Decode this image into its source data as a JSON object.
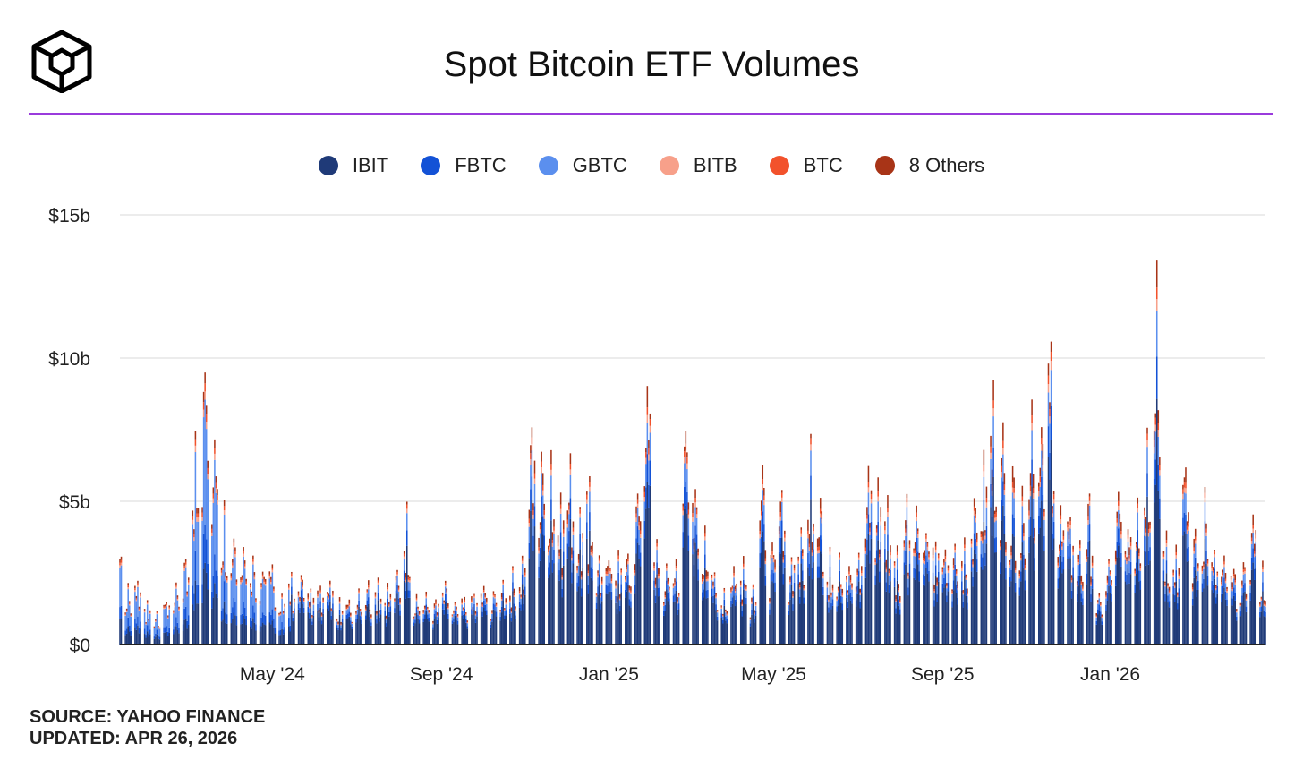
{
  "header": {
    "title": "Spot Bitcoin ETF Volumes",
    "logo_icon": "cube-logo-icon"
  },
  "footer": {
    "source": "SOURCE: YAHOO FINANCE",
    "updated": "UPDATED: APR 26, 2026"
  },
  "colors": {
    "IBIT": "#1f3a78",
    "FBTC": "#1352d6",
    "GBTC": "#5b8fee",
    "BITB": "#f7a08a",
    "BTC": "#f2522c",
    "Others": "#a83417",
    "accent_rule": "#9a3bdc",
    "gridline": "#e6e6e6"
  },
  "chart_data": {
    "type": "bar",
    "stacked": true,
    "title": "Spot Bitcoin ETF Volumes",
    "xlabel": "",
    "ylabel": "",
    "ylim": [
      0,
      15
    ],
    "y_unit": "$ billions",
    "y_ticks": [
      {
        "value": 0,
        "label": "$0"
      },
      {
        "value": 5,
        "label": "$5b"
      },
      {
        "value": 10,
        "label": "$10b"
      },
      {
        "value": 15,
        "label": "$15b"
      }
    ],
    "x_range": [
      "2024-01-11",
      "2026-04-24"
    ],
    "x_ticks": [
      {
        "date": "2024-05-01",
        "label": "May '24"
      },
      {
        "date": "2024-09-01",
        "label": "Sep '24"
      },
      {
        "date": "2025-01-01",
        "label": "Jan '25"
      },
      {
        "date": "2025-05-01",
        "label": "May '25"
      },
      {
        "date": "2025-09-01",
        "label": "Sep '25"
      },
      {
        "date": "2026-01-01",
        "label": "Jan '26"
      }
    ],
    "grid": true,
    "legend_position": "top-center",
    "series_names": [
      "IBIT",
      "FBTC",
      "GBTC",
      "BITB",
      "BTC",
      "8 Others"
    ],
    "weekly_total_volume": {
      "note_units": "$ billions, approximate daily total per week",
      "weeks": [
        {
          "w": "2024-01-12",
          "t": 4.5
        },
        {
          "w": "2024-01-19",
          "t": 2.2
        },
        {
          "w": "2024-01-26",
          "t": 2.3
        },
        {
          "w": "2024-02-02",
          "t": 1.6
        },
        {
          "w": "2024-02-09",
          "t": 1.2
        },
        {
          "w": "2024-02-16",
          "t": 1.5
        },
        {
          "w": "2024-02-23",
          "t": 2.2
        },
        {
          "w": "2024-03-01",
          "t": 3.0
        },
        {
          "w": "2024-03-08",
          "t": 7.6
        },
        {
          "w": "2024-03-15",
          "t": 9.8
        },
        {
          "w": "2024-03-22",
          "t": 7.4
        },
        {
          "w": "2024-03-29",
          "t": 5.2
        },
        {
          "w": "2024-04-05",
          "t": 3.8
        },
        {
          "w": "2024-04-12",
          "t": 3.5
        },
        {
          "w": "2024-04-19",
          "t": 3.2
        },
        {
          "w": "2024-04-26",
          "t": 2.6
        },
        {
          "w": "2024-05-03",
          "t": 2.9
        },
        {
          "w": "2024-05-10",
          "t": 1.8
        },
        {
          "w": "2024-05-17",
          "t": 2.6
        },
        {
          "w": "2024-05-24",
          "t": 2.5
        },
        {
          "w": "2024-05-31",
          "t": 2.0
        },
        {
          "w": "2024-06-07",
          "t": 2.1
        },
        {
          "w": "2024-06-14",
          "t": 2.3
        },
        {
          "w": "2024-06-21",
          "t": 1.7
        },
        {
          "w": "2024-06-28",
          "t": 1.6
        },
        {
          "w": "2024-07-05",
          "t": 2.0
        },
        {
          "w": "2024-07-12",
          "t": 2.3
        },
        {
          "w": "2024-07-19",
          "t": 2.4
        },
        {
          "w": "2024-07-26",
          "t": 2.2
        },
        {
          "w": "2024-08-02",
          "t": 2.6
        },
        {
          "w": "2024-08-09",
          "t": 5.2
        },
        {
          "w": "2024-08-16",
          "t": 1.8
        },
        {
          "w": "2024-08-23",
          "t": 1.9
        },
        {
          "w": "2024-08-30",
          "t": 1.6
        },
        {
          "w": "2024-09-06",
          "t": 2.3
        },
        {
          "w": "2024-09-13",
          "t": 1.5
        },
        {
          "w": "2024-09-20",
          "t": 1.7
        },
        {
          "w": "2024-09-27",
          "t": 1.8
        },
        {
          "w": "2024-10-04",
          "t": 2.1
        },
        {
          "w": "2024-10-11",
          "t": 1.9
        },
        {
          "w": "2024-10-18",
          "t": 2.3
        },
        {
          "w": "2024-10-25",
          "t": 2.8
        },
        {
          "w": "2024-11-01",
          "t": 3.1
        },
        {
          "w": "2024-11-08",
          "t": 7.8
        },
        {
          "w": "2024-11-15",
          "t": 6.9
        },
        {
          "w": "2024-11-22",
          "t": 7.0
        },
        {
          "w": "2024-11-29",
          "t": 5.4
        },
        {
          "w": "2024-12-06",
          "t": 6.9
        },
        {
          "w": "2024-12-13",
          "t": 4.9
        },
        {
          "w": "2024-12-20",
          "t": 6.1
        },
        {
          "w": "2024-12-27",
          "t": 3.2
        },
        {
          "w": "2025-01-03",
          "t": 3.0
        },
        {
          "w": "2025-01-10",
          "t": 3.4
        },
        {
          "w": "2025-01-17",
          "t": 3.2
        },
        {
          "w": "2025-01-24",
          "t": 5.3
        },
        {
          "w": "2025-01-31",
          "t": 9.4
        },
        {
          "w": "2025-02-07",
          "t": 3.8
        },
        {
          "w": "2025-02-14",
          "t": 2.9
        },
        {
          "w": "2025-02-21",
          "t": 3.0
        },
        {
          "w": "2025-02-28",
          "t": 7.7
        },
        {
          "w": "2025-03-07",
          "t": 5.6
        },
        {
          "w": "2025-03-14",
          "t": 4.3
        },
        {
          "w": "2025-03-21",
          "t": 2.6
        },
        {
          "w": "2025-03-28",
          "t": 2.0
        },
        {
          "w": "2025-04-04",
          "t": 2.8
        },
        {
          "w": "2025-04-11",
          "t": 3.2
        },
        {
          "w": "2025-04-18",
          "t": 2.1
        },
        {
          "w": "2025-04-25",
          "t": 6.5
        },
        {
          "w": "2025-05-02",
          "t": 3.6
        },
        {
          "w": "2025-05-09",
          "t": 5.6
        },
        {
          "w": "2025-05-16",
          "t": 3.1
        },
        {
          "w": "2025-05-23",
          "t": 4.1
        },
        {
          "w": "2025-05-30",
          "t": 7.6
        },
        {
          "w": "2025-06-06",
          "t": 5.3
        },
        {
          "w": "2025-06-13",
          "t": 3.5
        },
        {
          "w": "2025-06-20",
          "t": 3.3
        },
        {
          "w": "2025-06-27",
          "t": 2.8
        },
        {
          "w": "2025-07-04",
          "t": 3.2
        },
        {
          "w": "2025-07-11",
          "t": 6.4
        },
        {
          "w": "2025-07-18",
          "t": 6.0
        },
        {
          "w": "2025-07-25",
          "t": 5.4
        },
        {
          "w": "2025-08-01",
          "t": 3.5
        },
        {
          "w": "2025-08-08",
          "t": 5.4
        },
        {
          "w": "2025-08-15",
          "t": 5.0
        },
        {
          "w": "2025-08-22",
          "t": 4.0
        },
        {
          "w": "2025-08-29",
          "t": 3.7
        },
        {
          "w": "2025-09-05",
          "t": 3.4
        },
        {
          "w": "2025-09-12",
          "t": 3.6
        },
        {
          "w": "2025-09-19",
          "t": 3.8
        },
        {
          "w": "2025-09-26",
          "t": 5.2
        },
        {
          "w": "2025-10-03",
          "t": 6.9
        },
        {
          "w": "2025-10-10",
          "t": 9.5
        },
        {
          "w": "2025-10-17",
          "t": 8.0
        },
        {
          "w": "2025-10-24",
          "t": 6.4
        },
        {
          "w": "2025-10-31",
          "t": 5.6
        },
        {
          "w": "2025-11-07",
          "t": 8.8
        },
        {
          "w": "2025-11-14",
          "t": 7.7
        },
        {
          "w": "2025-11-21",
          "t": 11.0
        },
        {
          "w": "2025-11-28",
          "t": 5.0
        },
        {
          "w": "2025-12-05",
          "t": 4.6
        },
        {
          "w": "2025-12-12",
          "t": 3.7
        },
        {
          "w": "2025-12-19",
          "t": 5.5
        },
        {
          "w": "2025-12-26",
          "t": 1.8
        },
        {
          "w": "2026-01-02",
          "t": 3.0
        },
        {
          "w": "2026-01-09",
          "t": 5.5
        },
        {
          "w": "2026-01-16",
          "t": 4.1
        },
        {
          "w": "2026-01-23",
          "t": 5.2
        },
        {
          "w": "2026-01-30",
          "t": 7.6
        },
        {
          "w": "2026-02-06",
          "t": 14.0
        },
        {
          "w": "2026-02-13",
          "t": 4.1
        },
        {
          "w": "2026-02-20",
          "t": 3.5
        },
        {
          "w": "2026-02-27",
          "t": 6.4
        },
        {
          "w": "2026-03-06",
          "t": 4.1
        },
        {
          "w": "2026-03-13",
          "t": 5.7
        },
        {
          "w": "2026-03-20",
          "t": 3.4
        },
        {
          "w": "2026-03-27",
          "t": 3.2
        },
        {
          "w": "2026-04-03",
          "t": 2.7
        },
        {
          "w": "2026-04-10",
          "t": 2.9
        },
        {
          "w": "2026-04-17",
          "t": 4.7
        },
        {
          "w": "2026-04-24",
          "t": 3.0
        }
      ]
    }
  }
}
